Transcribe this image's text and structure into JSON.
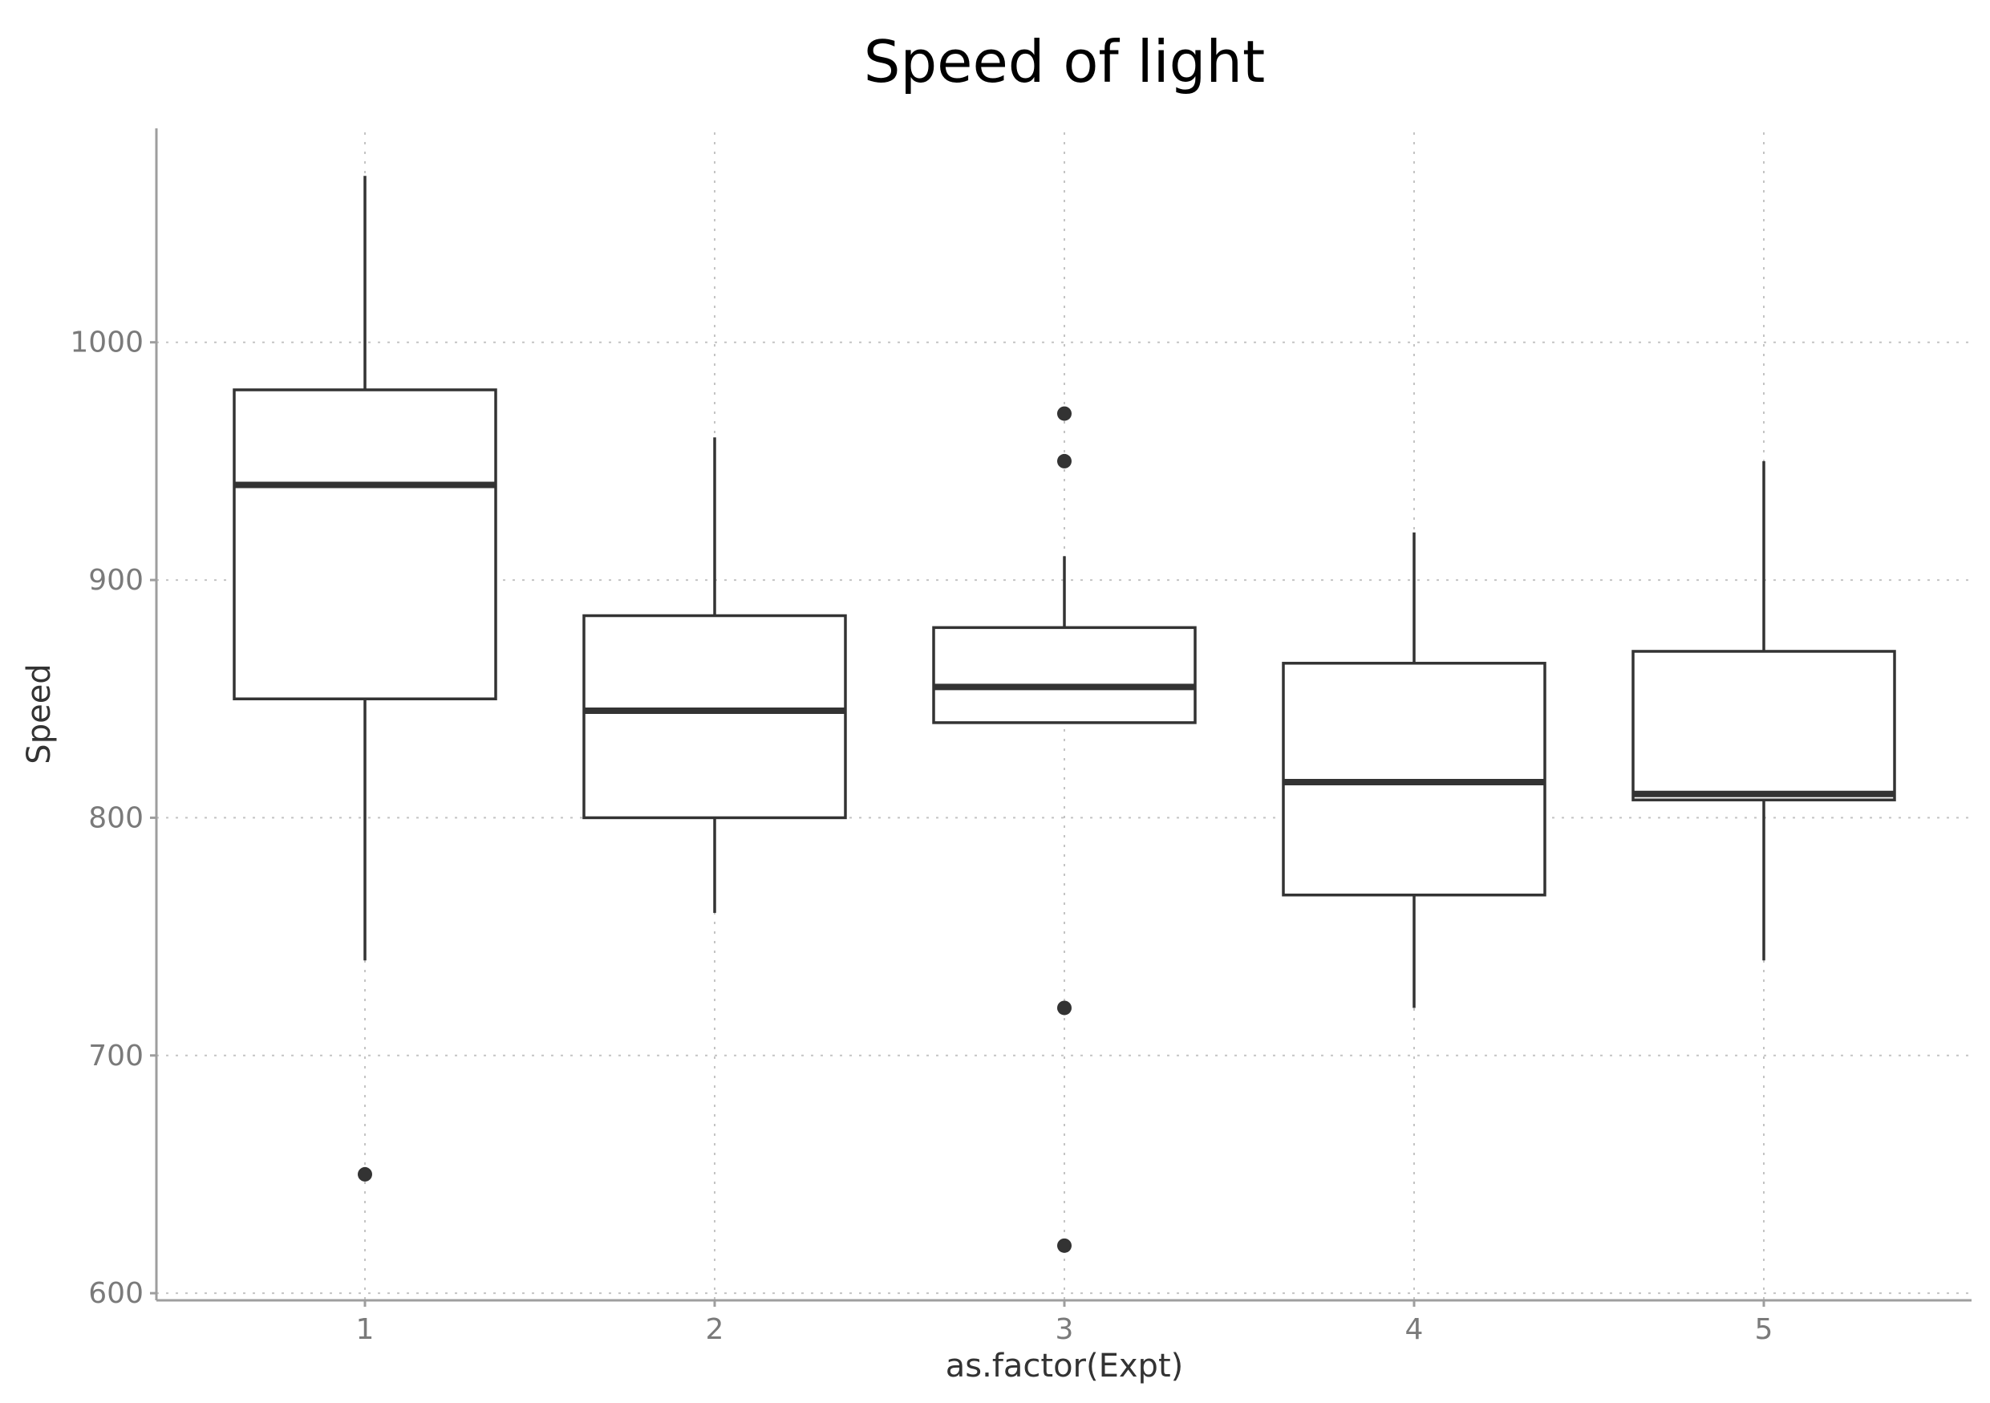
{
  "chart_data": {
    "type": "boxplot",
    "title": "Speed of light",
    "xlabel": "as.factor(Expt)",
    "ylabel": "Speed",
    "ylim": [
      597,
      1090
    ],
    "yticks": [
      600,
      700,
      800,
      900,
      1000
    ],
    "categories": [
      "1",
      "2",
      "3",
      "4",
      "5"
    ],
    "grid": true,
    "colors": {
      "box": "#333333",
      "grid": "#c4c4c4",
      "axis": "#9e9e9e",
      "tick_text": "#7a7a7a"
    },
    "boxes": [
      {
        "category": "1",
        "lower_whisker": 740,
        "q1": 850,
        "median": 940,
        "q3": 980,
        "upper_whisker": 1070,
        "outliers": [
          650
        ]
      },
      {
        "category": "2",
        "lower_whisker": 760,
        "q1": 800,
        "median": 845,
        "q3": 885,
        "upper_whisker": 960,
        "outliers": []
      },
      {
        "category": "3",
        "lower_whisker": 840,
        "q1": 840,
        "median": 855,
        "q3": 880,
        "upper_whisker": 910,
        "outliers": [
          620,
          720,
          950,
          970
        ]
      },
      {
        "category": "4",
        "lower_whisker": 720,
        "q1": 767.5,
        "median": 815,
        "q3": 865,
        "upper_whisker": 920,
        "outliers": []
      },
      {
        "category": "5",
        "lower_whisker": 740,
        "q1": 807.5,
        "median": 810,
        "q3": 870,
        "upper_whisker": 950,
        "outliers": []
      }
    ]
  }
}
